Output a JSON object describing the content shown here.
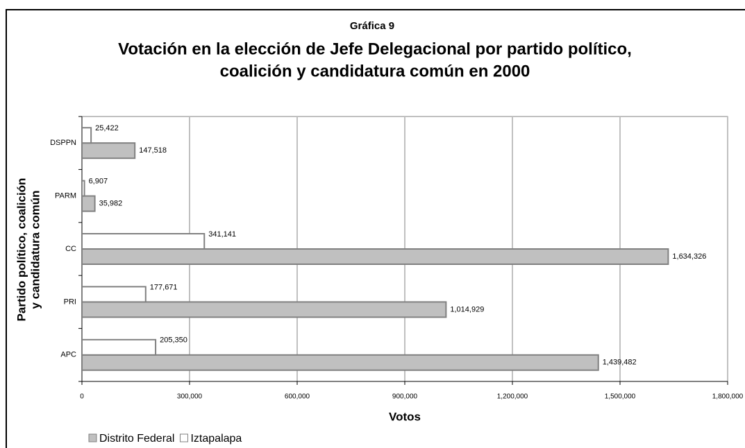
{
  "chart_data": {
    "type": "bar",
    "orientation": "horizontal",
    "subtitle": "Gráfica 9",
    "title": [
      "Votación en la elección de Jefe Delegacional por partido político,",
      "coalición y candidatura común en 2000"
    ],
    "x_label": "Votos",
    "y_label": [
      "Partido político, coalición",
      "y candidatura común"
    ],
    "categories": [
      "APC",
      "PRI",
      "CC",
      "PARM",
      "DSPPN"
    ],
    "series": [
      {
        "name": "Distrito Federal",
        "color": "#c0c0c0",
        "values": [
          1439482,
          1014929,
          1634326,
          35982,
          147518
        ],
        "value_labels": [
          "1,439,482",
          "1,014,929",
          "1,634,326",
          "35,982",
          "147,518"
        ]
      },
      {
        "name": "Iztapalapa",
        "color": "#ffffff",
        "values": [
          205350,
          177671,
          341141,
          6907,
          25422
        ],
        "value_labels": [
          "205,350",
          "177,671",
          "341,141",
          "6,907",
          "25,422"
        ]
      }
    ],
    "xlim": [
      0,
      1800000
    ],
    "xticks": [
      0,
      {
        "value": 300000,
        "label": "300,000"
      },
      {
        "value": 600000,
        "label": "600,000"
      },
      {
        "value": 900000,
        "label": "900,000"
      },
      {
        "value": 1200000,
        "label": "1,200,000"
      },
      {
        "value": 1500000,
        "label": "1,500,000"
      },
      {
        "value": 1800000,
        "label": "1,800,000"
      }
    ],
    "grid": true,
    "legend": "bottom"
  }
}
